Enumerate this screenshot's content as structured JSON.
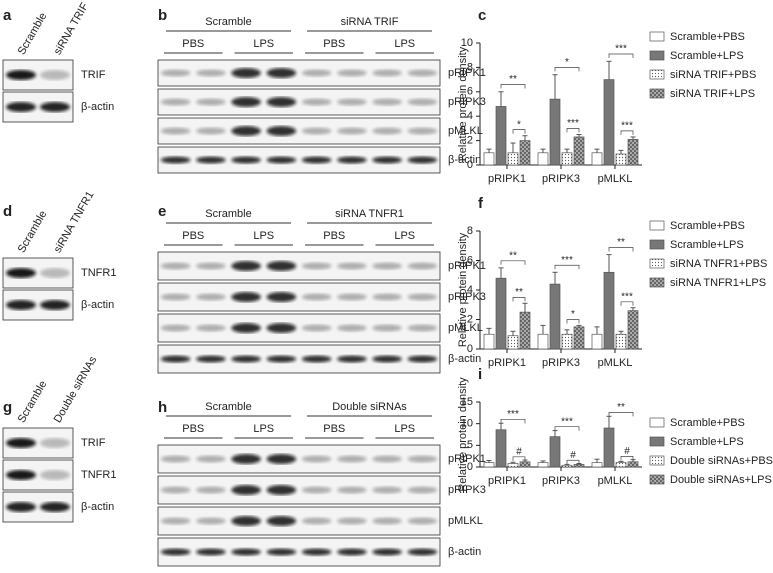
{
  "blots": [
    {
      "letter": "a",
      "lanes": [
        "Scramble",
        "siRNA TRIF"
      ],
      "rows": [
        "TRIF",
        "β-actin"
      ]
    },
    {
      "letter": "b",
      "groups": [
        "Scramble",
        "siRNA TRIF"
      ],
      "treatments": [
        "PBS",
        "LPS",
        "PBS",
        "LPS"
      ],
      "rows": [
        "pRIPK1",
        "pRIPK3",
        "pMLKL",
        "β-actin"
      ]
    },
    {
      "letter": "d",
      "lanes": [
        "Scramble",
        "siRNA TNFR1"
      ],
      "rows": [
        "TNFR1",
        "β-actin"
      ]
    },
    {
      "letter": "e",
      "groups": [
        "Scramble",
        "siRNA TNFR1"
      ],
      "treatments": [
        "PBS",
        "LPS",
        "PBS",
        "LPS"
      ],
      "rows": [
        "pRIPK1",
        "pRIPK3",
        "pMLKL",
        "β-actin"
      ]
    },
    {
      "letter": "g",
      "lanes": [
        "Scramble",
        "Double siRNAs"
      ],
      "rows": [
        "TRIF",
        "TNFR1",
        "β-actin"
      ]
    },
    {
      "letter": "h",
      "groups": [
        "Scramble",
        "Double siRNAs"
      ],
      "treatments": [
        "PBS",
        "LPS",
        "PBS",
        "LPS"
      ],
      "rows": [
        "pRIPK1",
        "pRIPK3",
        "pMLKL",
        "β-actin"
      ]
    }
  ],
  "chart_data": [
    {
      "type": "bar",
      "letter": "c",
      "y_label": "Relative protein density",
      "categories": [
        "pRIPK1",
        "pRIPK3",
        "pMLKL"
      ],
      "ylim": [
        0,
        10
      ],
      "yticks": [
        0,
        2,
        4,
        6,
        8,
        10
      ],
      "series": [
        {
          "name": "Scramble+PBS",
          "color": "#ffffff",
          "pattern": "solid",
          "values": [
            1.0,
            1.0,
            1.0
          ],
          "errors": [
            0.3,
            0.3,
            0.3
          ]
        },
        {
          "name": "Scramble+LPS",
          "color": "#777777",
          "pattern": "solid",
          "values": [
            4.8,
            5.4,
            7.0
          ],
          "errors": [
            1.2,
            2.0,
            1.5
          ]
        },
        {
          "name": "siRNA TRIF+PBS",
          "color": "#ffffff",
          "pattern": "dots",
          "values": [
            1.0,
            1.0,
            0.9
          ],
          "errors": [
            0.8,
            0.3,
            0.3
          ]
        },
        {
          "name": "siRNA TRIF+LPS",
          "color": "#999999",
          "pattern": "checker",
          "values": [
            2.0,
            2.3,
            2.1
          ],
          "errors": [
            0.4,
            0.2,
            0.2
          ]
        }
      ],
      "significance": [
        [
          "**",
          "*"
        ],
        [
          "*",
          "***"
        ],
        [
          "***",
          "***"
        ]
      ]
    },
    {
      "type": "bar",
      "letter": "f",
      "y_label": "Relative protein density",
      "categories": [
        "pRIPK1",
        "pRIPK3",
        "pMLKL"
      ],
      "ylim": [
        0,
        8
      ],
      "yticks": [
        0,
        2,
        4,
        6,
        8
      ],
      "series": [
        {
          "name": "Scramble+PBS",
          "color": "#ffffff",
          "pattern": "solid",
          "values": [
            1.0,
            1.0,
            1.0
          ],
          "errors": [
            0.4,
            0.6,
            0.5
          ]
        },
        {
          "name": "Scramble+LPS",
          "color": "#777777",
          "pattern": "solid",
          "values": [
            4.8,
            4.4,
            5.2
          ],
          "errors": [
            0.7,
            0.8,
            1.2
          ]
        },
        {
          "name": "siRNA TNFR1+PBS",
          "color": "#ffffff",
          "pattern": "dots",
          "values": [
            0.9,
            1.0,
            1.0
          ],
          "errors": [
            0.3,
            0.3,
            0.2
          ]
        },
        {
          "name": "siRNA TNFR1+LPS",
          "color": "#999999",
          "pattern": "checker",
          "values": [
            2.5,
            1.5,
            2.6
          ],
          "errors": [
            0.6,
            0.1,
            0.2
          ]
        }
      ],
      "significance": [
        [
          "**",
          "**"
        ],
        [
          "***",
          "*"
        ],
        [
          "**",
          "***"
        ]
      ]
    },
    {
      "type": "bar",
      "letter": "i",
      "y_label": "Relative protein density",
      "categories": [
        "pRIPK1",
        "pRIPK3",
        "pMLKL"
      ],
      "ylim": [
        0,
        15
      ],
      "yticks": [
        0,
        5,
        10,
        15
      ],
      "series": [
        {
          "name": "Scramble+PBS",
          "color": "#ffffff",
          "pattern": "solid",
          "values": [
            1.0,
            1.0,
            1.0
          ],
          "errors": [
            0.5,
            0.4,
            0.8
          ]
        },
        {
          "name": "Scramble+LPS",
          "color": "#777777",
          "pattern": "solid",
          "values": [
            8.6,
            7.0,
            9.0
          ],
          "errors": [
            1.5,
            1.4,
            2.7
          ]
        },
        {
          "name": "Double siRNAs+PBS",
          "color": "#ffffff",
          "pattern": "dots",
          "values": [
            0.8,
            0.4,
            1.0
          ],
          "errors": [
            0.3,
            0.2,
            0.3
          ]
        },
        {
          "name": "Double siRNAs+LPS",
          "color": "#999999",
          "pattern": "checker",
          "values": [
            1.2,
            0.6,
            1.2
          ],
          "errors": [
            0.4,
            0.2,
            0.5
          ]
        }
      ],
      "significance": [
        [
          "***",
          "#"
        ],
        [
          "***",
          "#"
        ],
        [
          "**",
          "#"
        ]
      ]
    }
  ]
}
